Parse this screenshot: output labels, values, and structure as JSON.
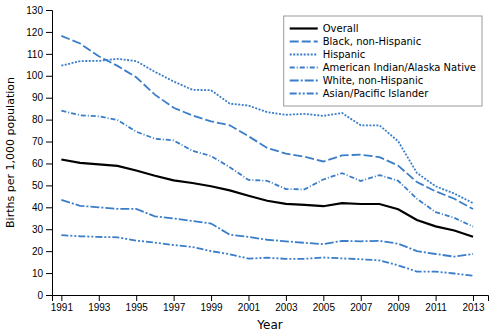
{
  "chart_data": {
    "type": "line",
    "xlabel": "Year",
    "ylabel": "Births per 1,000 population",
    "x": [
      1991,
      1992,
      1993,
      1994,
      1995,
      1996,
      1997,
      1998,
      1999,
      2000,
      2001,
      2002,
      2003,
      2004,
      2005,
      2006,
      2007,
      2008,
      2009,
      2010,
      2011,
      2012,
      2013
    ],
    "series": [
      {
        "name": "Overall",
        "color": "#000000",
        "line_style": "solid",
        "values": [
          61.8,
          60.3,
          59.6,
          58.9,
          56.8,
          54.4,
          52.3,
          51.1,
          49.6,
          47.7,
          45.3,
          43.0,
          41.6,
          41.1,
          40.5,
          41.9,
          41.5,
          41.5,
          39.1,
          34.2,
          31.3,
          29.4,
          26.6
        ]
      },
      {
        "name": "Black, non-Hispanic",
        "color": "#3a7dc9",
        "line_style": "dashed",
        "values": [
          118.2,
          114.7,
          108.9,
          104.5,
          99.3,
          91.4,
          85.4,
          81.9,
          79.2,
          77.4,
          72.4,
          67.1,
          64.5,
          63.1,
          60.9,
          63.7,
          64.0,
          62.9,
          59.0,
          51.5,
          47.3,
          43.9,
          39.2
        ]
      },
      {
        "name": "Hispanic",
        "color": "#3a7dc9",
        "line_style": "dotted",
        "values": [
          104.6,
          106.7,
          106.8,
          107.7,
          106.7,
          101.8,
          97.4,
          93.6,
          93.4,
          87.3,
          86.4,
          83.4,
          82.2,
          82.6,
          81.7,
          83.0,
          77.4,
          77.4,
          70.1,
          55.7,
          49.6,
          46.3,
          41.9
        ]
      },
      {
        "name": "American Indian/Alaska Native",
        "color": "#3a7dc9",
        "line_style": "dashdot",
        "values": [
          84.1,
          82.0,
          81.5,
          79.8,
          74.5,
          71.3,
          70.5,
          65.8,
          63.4,
          58.3,
          52.5,
          52.1,
          48.3,
          48.2,
          52.7,
          55.6,
          52.0,
          54.7,
          52.1,
          43.9,
          37.8,
          35.2,
          31.2
        ]
      },
      {
        "name": "White, non-Hispanic",
        "color": "#3a7dc9",
        "line_style": "longdashdot",
        "values": [
          43.4,
          40.7,
          40.0,
          39.3,
          39.3,
          35.9,
          34.9,
          33.8,
          32.6,
          27.5,
          26.5,
          25.2,
          24.5,
          23.8,
          23.2,
          24.7,
          24.5,
          24.7,
          23.4,
          20.0,
          18.7,
          17.5,
          18.7
        ]
      },
      {
        "name": "Asian/Pacific Islander",
        "color": "#3a7dc9",
        "line_style": "longdashdotdot",
        "values": [
          27.3,
          26.8,
          26.5,
          26.3,
          24.8,
          23.9,
          22.8,
          21.9,
          20.0,
          18.6,
          16.6,
          17.0,
          16.5,
          16.5,
          17.1,
          16.7,
          16.3,
          15.8,
          13.5,
          10.7,
          10.7,
          9.8,
          8.8
        ]
      }
    ],
    "xlim": [
      1990.5,
      2013.8
    ],
    "xticks": [
      1991,
      1993,
      1995,
      1997,
      1999,
      2001,
      2003,
      2005,
      2007,
      2009,
      2011,
      2013
    ],
    "ylim": [
      0,
      130
    ],
    "yticks": [
      0,
      10,
      20,
      30,
      40,
      50,
      60,
      70,
      80,
      90,
      100,
      110,
      120,
      130
    ],
    "grid": false,
    "legend": "upper right"
  }
}
